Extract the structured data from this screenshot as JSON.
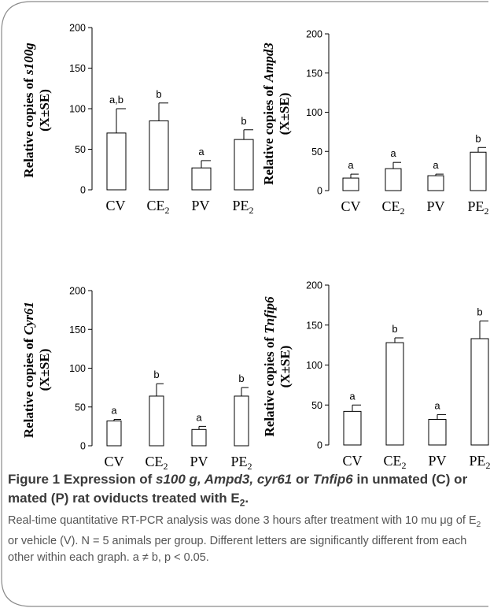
{
  "chart_data": [
    {
      "type": "bar",
      "ylabel": "Relative copies of s100g (X±SE)",
      "ylabel_gene": "s100g",
      "categories": [
        "CV",
        "CE2",
        "PV",
        "PE2"
      ],
      "values": [
        70,
        85,
        27,
        62
      ],
      "errors": [
        30,
        22,
        9,
        12
      ],
      "sig_letters": [
        "a,b",
        "b",
        "a",
        "b"
      ],
      "ylim": [
        0,
        200
      ],
      "yticks": [
        0,
        50,
        100,
        150,
        200
      ]
    },
    {
      "type": "bar",
      "ylabel": "Relative copies of Ampd3 (X±SE)",
      "ylabel_gene": "Ampd3",
      "categories": [
        "CV",
        "CE2",
        "PV",
        "PE2"
      ],
      "values": [
        16,
        28,
        19,
        49
      ],
      "errors": [
        5,
        8,
        2,
        6
      ],
      "sig_letters": [
        "a",
        "a",
        "a",
        "b"
      ],
      "ylim": [
        0,
        200
      ],
      "yticks": [
        0,
        50,
        100,
        150,
        200
      ]
    },
    {
      "type": "bar",
      "ylabel": "Relative copies of Cyr61 (X±SE)",
      "ylabel_gene": "Cyr61",
      "categories": [
        "CV",
        "CE2",
        "PV",
        "PE2"
      ],
      "values": [
        32,
        64,
        21,
        64
      ],
      "errors": [
        2,
        16,
        4,
        11
      ],
      "sig_letters": [
        "a",
        "b",
        "a",
        "b"
      ],
      "ylim": [
        0,
        200
      ],
      "yticks": [
        0,
        50,
        100,
        150,
        200
      ]
    },
    {
      "type": "bar",
      "ylabel": "Relative copies of Tnfip6 (X±SE)",
      "ylabel_gene": "Tnfip6",
      "categories": [
        "CV",
        "CE2",
        "PV",
        "PE2"
      ],
      "values": [
        42,
        128,
        32,
        133
      ],
      "errors": [
        8,
        6,
        6,
        22
      ],
      "sig_letters": [
        "a",
        "b",
        "a",
        "b"
      ],
      "ylim": [
        0,
        200
      ],
      "yticks": [
        0,
        50,
        100,
        150,
        200
      ]
    }
  ],
  "ylabel_prefix": "Relative copies of",
  "ylabel_suffix": "(X±SE)",
  "caption": {
    "figure_label": "Figure 1",
    "title_part1": "Expression of",
    "gene1": "s100 g, Ampd3, cyr61",
    "title_part2": "or",
    "gene2": "Tnfip6",
    "title_part3": "in unmated (C) or mated (P) rat oviducts treated with E",
    "title_sub": "2",
    "title_end": ".",
    "body_part1": "Real-time quantitative RT-PCR analysis was done 3 hours after treatment with 10 mu μg of E",
    "body_sub": "2",
    "body_part2": "or vehicle (V). N = 5 animals per group. Different letters are significantly different from each other within each graph. a ≠ b, p < 0.05."
  },
  "colors": {
    "border": "#888888",
    "axis": "#000000",
    "caption_title": "#3a3a3a",
    "caption_body": "#555555"
  }
}
